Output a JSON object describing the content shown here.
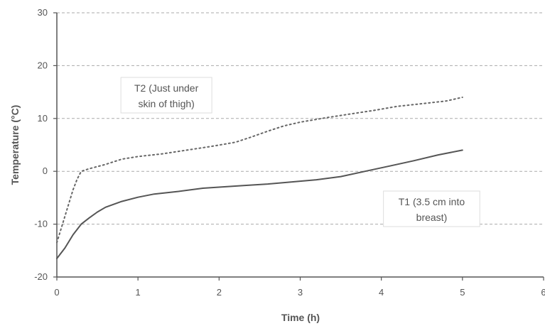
{
  "chart_data": {
    "type": "line",
    "title": "",
    "xlabel": "Time (h)",
    "ylabel": "Temperature (°C)",
    "xlim": [
      0,
      6
    ],
    "ylim": [
      -20,
      30
    ],
    "x_ticks": [
      "0",
      "1",
      "2",
      "3",
      "4",
      "5",
      "6"
    ],
    "y_ticks": [
      "-20",
      "-10",
      "0",
      "10",
      "20",
      "30"
    ],
    "grid": "horizontal dashed",
    "legend": "none",
    "series": [
      {
        "name": "T2 (Just under skin of thigh)",
        "style": "dotted",
        "color": "#666666",
        "x": [
          0,
          0.05,
          0.1,
          0.15,
          0.2,
          0.25,
          0.3,
          0.4,
          0.6,
          0.8,
          1.0,
          1.3,
          1.6,
          1.9,
          2.2,
          2.4,
          2.6,
          2.8,
          3.0,
          3.3,
          3.6,
          3.9,
          4.2,
          4.5,
          4.8,
          5.0
        ],
        "y": [
          -13.5,
          -11,
          -8.5,
          -6,
          -3.5,
          -1.5,
          0,
          0.5,
          1.3,
          2.3,
          2.8,
          3.3,
          4.0,
          4.7,
          5.5,
          6.5,
          7.6,
          8.6,
          9.3,
          10.1,
          10.8,
          11.5,
          12.3,
          12.8,
          13.3,
          14.0
        ]
      },
      {
        "name": "T1 (3.5 cm into breast)",
        "style": "solid",
        "color": "#555555",
        "x": [
          0,
          0.1,
          0.2,
          0.3,
          0.4,
          0.5,
          0.6,
          0.8,
          1.0,
          1.2,
          1.5,
          1.8,
          2.0,
          2.3,
          2.6,
          2.9,
          3.2,
          3.5,
          3.8,
          4.1,
          4.4,
          4.7,
          5.0
        ],
        "y": [
          -16.5,
          -14.5,
          -12,
          -10,
          -8.8,
          -7.7,
          -6.8,
          -5.7,
          -4.9,
          -4.3,
          -3.8,
          -3.2,
          -3.0,
          -2.7,
          -2.4,
          -2.0,
          -1.6,
          -1.0,
          0.0,
          1.0,
          2.0,
          3.1,
          4.0
        ]
      }
    ],
    "annotations": [
      {
        "lines": [
          "T2  (Just under",
          "skin of thigh)"
        ],
        "x": 1.35,
        "y": 14.0
      },
      {
        "lines": [
          "T1 (3.5  cm into",
          "breast)"
        ],
        "x": 4.62,
        "y": -7.5
      }
    ]
  }
}
